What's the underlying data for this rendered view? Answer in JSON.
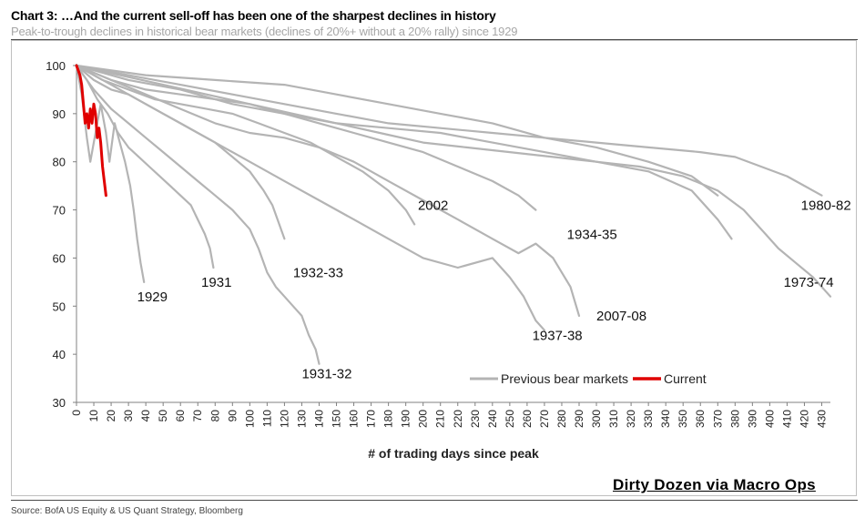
{
  "header": {
    "title": "Chart 3: …And the current sell-off has been one of the sharpest declines in history",
    "subtitle": "Peak-to-trough declines in historical bear markets (declines of 20%+ without a 20% rally) since 1929"
  },
  "footer": {
    "source": "Source:  BofA US Equity & US Quant Strategy, Bloomberg",
    "watermark": "Dirty Dozen via Macro Ops"
  },
  "colors": {
    "previous": "#b4b4b4",
    "current": "#e00000",
    "axis": "#808080"
  },
  "chart_data": {
    "type": "line",
    "title": "",
    "xlabel": "# of trading days since peak",
    "ylabel": "",
    "xlim": [
      0,
      435
    ],
    "ylim": [
      30,
      100
    ],
    "xticks": [
      0,
      10,
      20,
      30,
      40,
      50,
      60,
      70,
      80,
      90,
      100,
      110,
      120,
      130,
      140,
      150,
      160,
      170,
      180,
      190,
      200,
      210,
      220,
      230,
      240,
      250,
      260,
      270,
      280,
      290,
      300,
      310,
      320,
      330,
      340,
      350,
      360,
      370,
      380,
      390,
      400,
      410,
      420,
      430
    ],
    "yticks": [
      30,
      40,
      50,
      60,
      70,
      80,
      90,
      100
    ],
    "legend": {
      "placement": "bottom-center",
      "entries": [
        "Previous bear markets",
        "Current"
      ]
    },
    "series": [
      {
        "name": "1929",
        "group": "previous",
        "label": "1929",
        "label_point": [
          35,
          51
        ],
        "points": [
          [
            0,
            100
          ],
          [
            3,
            94
          ],
          [
            6,
            85
          ],
          [
            8,
            80
          ],
          [
            11,
            86
          ],
          [
            14,
            92
          ],
          [
            17,
            86
          ],
          [
            19,
            80
          ],
          [
            22,
            88
          ],
          [
            25,
            84
          ],
          [
            28,
            80
          ],
          [
            31,
            75
          ],
          [
            33,
            70
          ],
          [
            35,
            64
          ],
          [
            37,
            59
          ],
          [
            39,
            55
          ]
        ]
      },
      {
        "name": "1931",
        "group": "previous",
        "label": "1931",
        "label_point": [
          72,
          54
        ],
        "points": [
          [
            0,
            100
          ],
          [
            6,
            97
          ],
          [
            12,
            93
          ],
          [
            18,
            90
          ],
          [
            24,
            86
          ],
          [
            30,
            83
          ],
          [
            36,
            81
          ],
          [
            42,
            79
          ],
          [
            48,
            77
          ],
          [
            54,
            75
          ],
          [
            60,
            73
          ],
          [
            66,
            71
          ],
          [
            70,
            68
          ],
          [
            74,
            65
          ],
          [
            77,
            62
          ],
          [
            79,
            58
          ]
        ]
      },
      {
        "name": "1931-32",
        "group": "previous",
        "label": "1931-32",
        "label_point": [
          130,
          35
        ],
        "points": [
          [
            0,
            100
          ],
          [
            10,
            95
          ],
          [
            20,
            91
          ],
          [
            30,
            88
          ],
          [
            40,
            85
          ],
          [
            50,
            82
          ],
          [
            60,
            79
          ],
          [
            70,
            76
          ],
          [
            80,
            73
          ],
          [
            90,
            70
          ],
          [
            100,
            66
          ],
          [
            105,
            62
          ],
          [
            110,
            57
          ],
          [
            115,
            54
          ],
          [
            120,
            52
          ],
          [
            125,
            50
          ],
          [
            130,
            48
          ],
          [
            134,
            44
          ],
          [
            138,
            41
          ],
          [
            140,
            38
          ]
        ]
      },
      {
        "name": "1932-33",
        "group": "previous",
        "label": "1932-33",
        "label_point": [
          125,
          56
        ],
        "points": [
          [
            0,
            100
          ],
          [
            10,
            97
          ],
          [
            20,
            95
          ],
          [
            30,
            94
          ],
          [
            40,
            92
          ],
          [
            50,
            90
          ],
          [
            60,
            88
          ],
          [
            70,
            86
          ],
          [
            80,
            84
          ],
          [
            90,
            81
          ],
          [
            100,
            78
          ],
          [
            108,
            74
          ],
          [
            113,
            71
          ],
          [
            117,
            67
          ],
          [
            120,
            64
          ]
        ]
      },
      {
        "name": "2002",
        "group": "previous",
        "label": "2002",
        "label_point": [
          197,
          70
        ],
        "points": [
          [
            0,
            100
          ],
          [
            15,
            97
          ],
          [
            30,
            95
          ],
          [
            45,
            93
          ],
          [
            60,
            92
          ],
          [
            75,
            91
          ],
          [
            90,
            90
          ],
          [
            105,
            88
          ],
          [
            120,
            86
          ],
          [
            135,
            84
          ],
          [
            150,
            81
          ],
          [
            165,
            78
          ],
          [
            180,
            74
          ],
          [
            190,
            70
          ],
          [
            195,
            67
          ]
        ]
      },
      {
        "name": "1934-35",
        "group": "previous",
        "label": "1934-35",
        "label_point": [
          283,
          64
        ],
        "points": [
          [
            0,
            100
          ],
          [
            20,
            97
          ],
          [
            40,
            95
          ],
          [
            60,
            94
          ],
          [
            80,
            93
          ],
          [
            100,
            92
          ],
          [
            120,
            90
          ],
          [
            140,
            88
          ],
          [
            160,
            86
          ],
          [
            180,
            84
          ],
          [
            200,
            82
          ],
          [
            220,
            79
          ],
          [
            240,
            76
          ],
          [
            255,
            73
          ],
          [
            265,
            70
          ]
        ]
      },
      {
        "name": "2007-08",
        "group": "previous",
        "label": "2007-08",
        "label_point": [
          300,
          47
        ],
        "points": [
          [
            0,
            100
          ],
          [
            20,
            97
          ],
          [
            40,
            94
          ],
          [
            60,
            91
          ],
          [
            80,
            88
          ],
          [
            100,
            86
          ],
          [
            120,
            85
          ],
          [
            140,
            83
          ],
          [
            160,
            80
          ],
          [
            180,
            76
          ],
          [
            200,
            72
          ],
          [
            220,
            68
          ],
          [
            240,
            64
          ],
          [
            255,
            61
          ],
          [
            265,
            63
          ],
          [
            275,
            60
          ],
          [
            285,
            54
          ],
          [
            290,
            48
          ]
        ]
      },
      {
        "name": "1937-38",
        "group": "previous",
        "label": "1937-38",
        "label_point": [
          263,
          43
        ],
        "points": [
          [
            0,
            100
          ],
          [
            20,
            96
          ],
          [
            40,
            92
          ],
          [
            60,
            88
          ],
          [
            80,
            84
          ],
          [
            100,
            80
          ],
          [
            120,
            76
          ],
          [
            140,
            72
          ],
          [
            160,
            68
          ],
          [
            180,
            64
          ],
          [
            200,
            60
          ],
          [
            220,
            58
          ],
          [
            240,
            60
          ],
          [
            250,
            56
          ],
          [
            258,
            52
          ],
          [
            265,
            47
          ],
          [
            270,
            45
          ]
        ]
      },
      {
        "name": "1973-74",
        "group": "previous",
        "label": "1973-74",
        "label_point": [
          408,
          54
        ],
        "points": [
          [
            0,
            100
          ],
          [
            25,
            98
          ],
          [
            50,
            96
          ],
          [
            75,
            94
          ],
          [
            100,
            92
          ],
          [
            125,
            90
          ],
          [
            150,
            88
          ],
          [
            175,
            86
          ],
          [
            200,
            84
          ],
          [
            225,
            83
          ],
          [
            250,
            82
          ],
          [
            275,
            81
          ],
          [
            300,
            80
          ],
          [
            325,
            79
          ],
          [
            350,
            77
          ],
          [
            370,
            74
          ],
          [
            385,
            70
          ],
          [
            395,
            66
          ],
          [
            405,
            62
          ],
          [
            415,
            59
          ],
          [
            425,
            56
          ],
          [
            435,
            52
          ]
        ]
      },
      {
        "name": "1980-82",
        "group": "previous",
        "label": "1980-82",
        "label_point": [
          418,
          70
        ],
        "points": [
          [
            0,
            100
          ],
          [
            30,
            98
          ],
          [
            60,
            96
          ],
          [
            90,
            94
          ],
          [
            120,
            92
          ],
          [
            150,
            90
          ],
          [
            180,
            88
          ],
          [
            210,
            87
          ],
          [
            240,
            86
          ],
          [
            270,
            85
          ],
          [
            300,
            84
          ],
          [
            330,
            83
          ],
          [
            360,
            82
          ],
          [
            380,
            81
          ],
          [
            395,
            79
          ],
          [
            410,
            77
          ],
          [
            420,
            75
          ],
          [
            430,
            73
          ]
        ]
      },
      {
        "name": "prev-11",
        "group": "previous",
        "label": "",
        "label_point": [
          0,
          0
        ],
        "points": [
          [
            0,
            100
          ],
          [
            30,
            97
          ],
          [
            60,
            95
          ],
          [
            90,
            92
          ],
          [
            120,
            90
          ],
          [
            150,
            88
          ],
          [
            180,
            87
          ],
          [
            210,
            86
          ],
          [
            240,
            84
          ],
          [
            270,
            82
          ],
          [
            300,
            80
          ],
          [
            330,
            78
          ],
          [
            355,
            74
          ],
          [
            370,
            68
          ],
          [
            378,
            64
          ]
        ]
      },
      {
        "name": "prev-12",
        "group": "previous",
        "label": "",
        "label_point": [
          0,
          0
        ],
        "points": [
          [
            0,
            100
          ],
          [
            40,
            98
          ],
          [
            80,
            97
          ],
          [
            120,
            96
          ],
          [
            150,
            94
          ],
          [
            180,
            92
          ],
          [
            210,
            90
          ],
          [
            240,
            88
          ],
          [
            270,
            85
          ],
          [
            300,
            83
          ],
          [
            330,
            80
          ],
          [
            355,
            77
          ],
          [
            370,
            73
          ]
        ]
      },
      {
        "name": "Current",
        "group": "current",
        "label": "",
        "label_point": [
          0,
          0
        ],
        "points": [
          [
            0,
            100
          ],
          [
            1,
            99
          ],
          [
            2,
            98
          ],
          [
            3,
            96
          ],
          [
            4,
            92
          ],
          [
            5,
            88
          ],
          [
            6,
            90
          ],
          [
            7,
            87
          ],
          [
            8,
            91
          ],
          [
            9,
            88
          ],
          [
            10,
            92
          ],
          [
            11,
            90
          ],
          [
            12,
            85
          ],
          [
            13,
            87
          ],
          [
            14,
            84
          ],
          [
            15,
            79
          ],
          [
            16,
            76
          ],
          [
            17,
            73
          ]
        ]
      }
    ]
  }
}
